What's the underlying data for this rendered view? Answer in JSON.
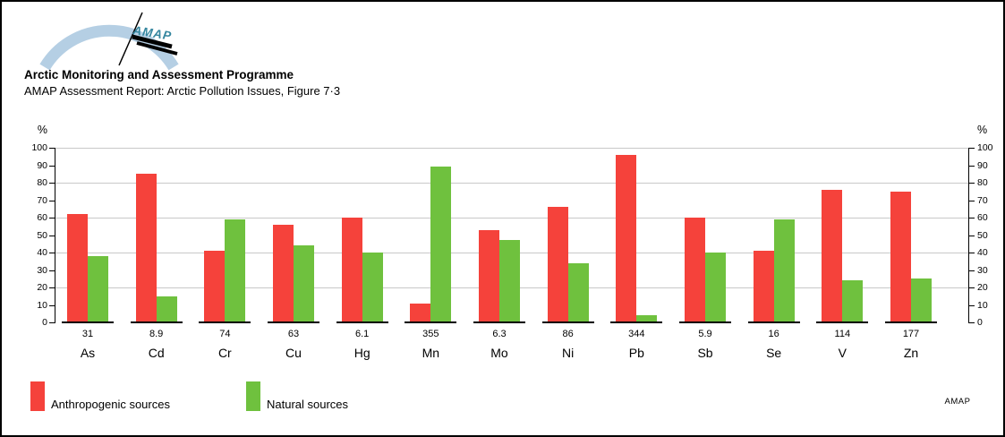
{
  "header": {
    "title": "Arctic Monitoring and Assessment Programme",
    "subtitle": "AMAP Assessment Report: Arctic Pollution Issues, Figure 7·3",
    "logo_text": "AMAP"
  },
  "colors": {
    "anthropogenic": "#f5423b",
    "natural": "#6fc13e",
    "gridline": "#c9c9c9",
    "axis": "#000000",
    "logo_arc": "#b5cfe4",
    "logo_teal": "#35869f"
  },
  "chart_data": {
    "type": "bar",
    "title": "",
    "categories": [
      "As",
      "Cd",
      "Cr",
      "Cu",
      "Hg",
      "Mn",
      "Mo",
      "Ni",
      "Pb",
      "Sb",
      "Se",
      "V",
      "Zn"
    ],
    "category_totals": [
      "31",
      "8.9",
      "74",
      "63",
      "6.1",
      "355",
      "6.3",
      "86",
      "344",
      "5.9",
      "16",
      "114",
      "177"
    ],
    "series": [
      {
        "name": "Anthropogenic sources",
        "color": "#f5423b",
        "values": [
          62,
          85,
          41,
          56,
          60,
          11,
          53,
          66,
          96,
          60,
          41,
          76,
          75
        ]
      },
      {
        "name": "Natural sources",
        "color": "#6fc13e",
        "values": [
          38,
          15,
          59,
          44,
          40,
          89,
          47,
          34,
          4,
          40,
          59,
          24,
          25
        ]
      }
    ],
    "ylabel_left": "%",
    "ylabel_right": "%",
    "ylim": [
      0,
      100
    ],
    "ytick_interval": 10,
    "gridline_interval": 20,
    "grid": true,
    "legend_position": "bottom-left"
  },
  "footer": {
    "credit": "AMAP"
  }
}
